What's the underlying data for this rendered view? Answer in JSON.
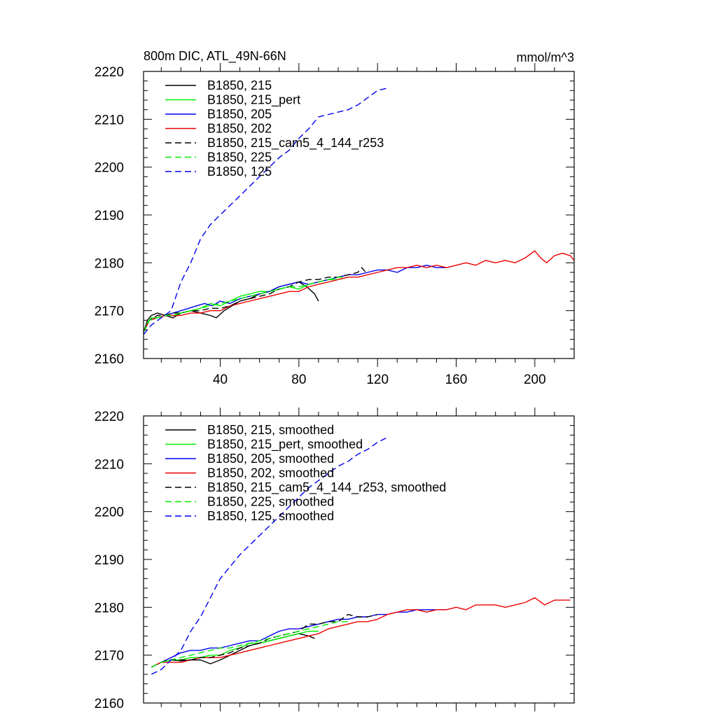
{
  "chart_data": [
    {
      "type": "line",
      "title": "800m DIC, ATL_49N-66N",
      "units": "mmol/m^3",
      "xlim": [
        1,
        220
      ],
      "ylim": [
        2160,
        2220
      ],
      "xticks": [
        40,
        80,
        120,
        160,
        200
      ],
      "yticks": [
        2160,
        2170,
        2180,
        2190,
        2200,
        2210,
        2220
      ],
      "xtick_labels": [
        "40",
        "80",
        "120",
        "160",
        "200"
      ],
      "ytick_labels": [
        "2160",
        "2170",
        "2180",
        "2190",
        "2200",
        "2210",
        "2220"
      ],
      "legend_position": "top-left",
      "series": [
        {
          "name": "B1850, 215",
          "color": "#000000",
          "dash": false,
          "x": [
            1,
            3,
            5,
            8,
            12,
            16,
            20,
            25,
            30,
            35,
            38,
            42,
            46,
            50,
            55,
            60,
            65,
            70,
            75,
            80,
            84,
            88,
            90
          ],
          "y": [
            2165.5,
            2168,
            2169,
            2169.5,
            2169,
            2168.5,
            2169.5,
            2170,
            2169.5,
            2169,
            2168.5,
            2170,
            2171,
            2172,
            2172.5,
            2173.5,
            2174,
            2175,
            2175.5,
            2176,
            2175,
            2173.5,
            2172
          ]
        },
        {
          "name": "B1850, 215_pert",
          "color": "#00ee00",
          "dash": false,
          "x": [
            1,
            3,
            5,
            8,
            12,
            16,
            20,
            25,
            30,
            35,
            40,
            45,
            50,
            55,
            60,
            65,
            70,
            75,
            80,
            85,
            90,
            95,
            100,
            105
          ],
          "y": [
            2165.5,
            2167.5,
            2168.5,
            2168.5,
            2169,
            2169,
            2169.5,
            2170,
            2170.5,
            2171.5,
            2171,
            2172,
            2173,
            2173.5,
            2174,
            2174,
            2174.5,
            2175,
            2174.5,
            2175.5,
            2176,
            2176.5,
            2176.5,
            2177
          ]
        },
        {
          "name": "B1850, 205",
          "color": "#0000ee",
          "dash": false,
          "x": [
            1,
            4,
            8,
            12,
            16,
            20,
            24,
            28,
            32,
            36,
            40,
            45,
            50,
            55,
            60,
            65,
            70,
            75,
            80,
            85,
            90,
            95,
            100,
            105,
            110,
            115,
            120,
            125,
            130,
            135,
            140,
            145,
            150,
            155
          ],
          "y": [
            2165.5,
            2168,
            2168.5,
            2169,
            2169.5,
            2170,
            2170.5,
            2171,
            2171.5,
            2171,
            2172,
            2171.5,
            2172.5,
            2173,
            2173.5,
            2174,
            2175,
            2175.5,
            2176,
            2175.5,
            2176,
            2176.5,
            2177,
            2177.5,
            2177.5,
            2178,
            2178.5,
            2178.5,
            2178,
            2179,
            2179,
            2179.5,
            2179,
            2179
          ]
        },
        {
          "name": "B1850, 202",
          "color": "#ee0000",
          "dash": false,
          "x": [
            1,
            4,
            8,
            12,
            16,
            20,
            25,
            30,
            35,
            40,
            45,
            50,
            55,
            60,
            65,
            70,
            75,
            80,
            85,
            90,
            95,
            100,
            105,
            110,
            115,
            120,
            125,
            130,
            135,
            140,
            145,
            150,
            155,
            160,
            165,
            170,
            175,
            180,
            185,
            190,
            195,
            200,
            203,
            206,
            210,
            214,
            218,
            220
          ],
          "y": [
            2165.5,
            2168,
            2168.5,
            2169,
            2169,
            2169,
            2169.5,
            2169.5,
            2170,
            2170,
            2171,
            2171.5,
            2172,
            2172.5,
            2173,
            2173.5,
            2174,
            2174,
            2175,
            2175.5,
            2176,
            2176.5,
            2177,
            2177,
            2177.5,
            2178,
            2178.5,
            2179,
            2179,
            2179.5,
            2179,
            2179.5,
            2179,
            2179.5,
            2180,
            2179.5,
            2180.5,
            2180,
            2180.5,
            2180,
            2181,
            2182.5,
            2181,
            2180,
            2181.5,
            2182,
            2181.5,
            2180.5
          ]
        },
        {
          "name": "B1850, 215_cam5_4_144_r253",
          "color": "#000000",
          "dash": true,
          "x": [
            1,
            4,
            8,
            12,
            16,
            20,
            25,
            30,
            35,
            40,
            45,
            50,
            55,
            60,
            65,
            70,
            75,
            80,
            85,
            90,
            95,
            100,
            105,
            110,
            112,
            114
          ],
          "y": [
            2165.5,
            2168,
            2169,
            2169,
            2169.5,
            2169.5,
            2170,
            2170,
            2170.5,
            2170.5,
            2171,
            2172,
            2172.5,
            2173,
            2173.5,
            2174.5,
            2175,
            2176,
            2176.5,
            2176.5,
            2177,
            2177,
            2177.5,
            2178,
            2179,
            2178
          ]
        },
        {
          "name": "B1850, 225",
          "color": "#00ee00",
          "dash": true,
          "x": [
            1,
            4,
            8,
            12,
            16,
            20,
            25,
            30,
            35,
            40,
            45,
            50,
            55,
            60,
            65,
            70,
            75,
            80,
            85,
            90,
            95,
            100,
            104
          ],
          "y": [
            2165.5,
            2168,
            2168.5,
            2169,
            2169,
            2169.5,
            2170,
            2170.5,
            2171,
            2171.5,
            2172,
            2172.5,
            2173,
            2173.5,
            2174,
            2174.5,
            2175,
            2175,
            2175.5,
            2176,
            2176.5,
            2177,
            2177
          ]
        },
        {
          "name": "B1850, 125",
          "color": "#0000ee",
          "dash": true,
          "x": [
            1,
            5,
            10,
            15,
            20,
            25,
            30,
            35,
            40,
            45,
            50,
            55,
            60,
            65,
            70,
            75,
            80,
            85,
            90,
            95,
            100,
            105,
            110,
            115,
            120,
            125
          ],
          "y": [
            2165,
            2167,
            2168.5,
            2170,
            2176,
            2180,
            2185,
            2188,
            2190,
            2192,
            2194,
            2196,
            2198,
            2200,
            2202,
            2203.5,
            2206,
            2208,
            2210.5,
            2211,
            2211.5,
            2212,
            2213,
            2214.5,
            2216,
            2216.5
          ]
        }
      ]
    },
    {
      "type": "line",
      "xlim": [
        1,
        220
      ],
      "ylim": [
        2160,
        2220
      ],
      "xticks": [
        40,
        80,
        120,
        160,
        200
      ],
      "yticks": [
        2160,
        2170,
        2180,
        2190,
        2200,
        2210,
        2220
      ],
      "ytick_labels": [
        "2160",
        "2170",
        "2180",
        "2190",
        "2200",
        "2210",
        "2220"
      ],
      "legend_position": "top-left",
      "series": [
        {
          "name": "B1850, 215, smoothed",
          "color": "#000000",
          "dash": false,
          "x": [
            5,
            10,
            15,
            20,
            25,
            30,
            35,
            40,
            45,
            50,
            55,
            60,
            65,
            70,
            75,
            80,
            85,
            88
          ],
          "y": [
            2167.5,
            2168.5,
            2169,
            2168.8,
            2169,
            2169,
            2168.2,
            2169,
            2170,
            2171,
            2172,
            2172.5,
            2173,
            2173.5,
            2174,
            2174.5,
            2174,
            2173.5
          ]
        },
        {
          "name": "B1850, 215_pert, smoothed",
          "color": "#00ee00",
          "dash": false,
          "x": [
            5,
            10,
            15,
            20,
            25,
            30,
            35,
            40,
            45,
            50,
            55,
            60,
            65,
            70,
            75,
            80,
            85,
            90
          ],
          "y": [
            2167.5,
            2168.5,
            2169,
            2169,
            2169.5,
            2169.5,
            2170,
            2170,
            2171,
            2171.5,
            2172.5,
            2172.5,
            2173,
            2173.5,
            2174,
            2174.5,
            2175,
            2175
          ]
        },
        {
          "name": "B1850, 205, smoothed",
          "color": "#0000ee",
          "dash": false,
          "x": [
            5,
            10,
            15,
            20,
            25,
            30,
            35,
            40,
            45,
            50,
            55,
            60,
            65,
            70,
            75,
            80,
            85,
            90,
            95,
            100,
            105,
            110,
            115,
            120,
            125,
            130,
            135,
            140,
            145,
            150,
            155
          ],
          "y": [
            2167.5,
            2168.5,
            2169.5,
            2170.5,
            2171,
            2171,
            2171.5,
            2171.5,
            2172,
            2172.5,
            2173,
            2173,
            2174,
            2175,
            2175.5,
            2175.5,
            2176,
            2176.5,
            2177,
            2177.5,
            2177.5,
            2178,
            2178,
            2178.5,
            2178.5,
            2179,
            2179,
            2179.5,
            2179.5,
            2179.5,
            2179.5
          ]
        },
        {
          "name": "B1850, 202, smoothed",
          "color": "#ee0000",
          "dash": false,
          "x": [
            5,
            10,
            15,
            20,
            25,
            30,
            35,
            40,
            45,
            50,
            55,
            60,
            65,
            70,
            75,
            80,
            85,
            90,
            95,
            100,
            105,
            110,
            115,
            120,
            125,
            130,
            135,
            140,
            145,
            150,
            155,
            160,
            165,
            170,
            175,
            180,
            185,
            190,
            195,
            200,
            205,
            210,
            215,
            218
          ],
          "y": [
            2167.5,
            2168.5,
            2168.5,
            2168.5,
            2169,
            2169.5,
            2169.5,
            2169.5,
            2170,
            2170.5,
            2171,
            2171.5,
            2172,
            2172.5,
            2173,
            2173.5,
            2174,
            2174.5,
            2175.5,
            2176,
            2176.5,
            2177,
            2177,
            2177.5,
            2178.5,
            2179,
            2179.5,
            2179.5,
            2179,
            2179.5,
            2179.5,
            2180,
            2179.5,
            2180.5,
            2180.5,
            2180.5,
            2180,
            2180.5,
            2181,
            2182,
            2180.5,
            2181.5,
            2181.5,
            2181.5
          ]
        },
        {
          "name": "B1850, 215_cam5_4_144_r253, smoothed",
          "color": "#000000",
          "dash": true,
          "x": [
            5,
            10,
            15,
            20,
            25,
            30,
            35,
            40,
            45,
            50,
            55,
            60,
            65,
            70,
            75,
            80,
            85,
            90,
            95,
            100,
            105,
            110,
            115,
            120
          ],
          "y": [
            2167.5,
            2168.5,
            2169,
            2169,
            2169,
            2169.5,
            2169.5,
            2170,
            2170.5,
            2171.5,
            2172,
            2172.5,
            2173.5,
            2174,
            2174.5,
            2175,
            2176.5,
            2176.5,
            2177,
            2177,
            2178.5,
            2178,
            2178,
            2178.5
          ]
        },
        {
          "name": "B1850, 225, smoothed",
          "color": "#00ee00",
          "dash": true,
          "x": [
            5,
            10,
            15,
            20,
            25,
            30,
            35,
            40,
            45,
            50,
            55,
            60,
            65,
            70,
            75,
            80,
            85,
            90,
            95,
            100,
            105
          ],
          "y": [
            2167.5,
            2168.5,
            2169,
            2169.5,
            2170,
            2170.5,
            2171,
            2171.5,
            2171.5,
            2172,
            2172.5,
            2173,
            2173.5,
            2174,
            2174.5,
            2175,
            2175.5,
            2176,
            2176.5,
            2177,
            2177
          ]
        },
        {
          "name": "B1850, 125, smoothed",
          "color": "#0000ee",
          "dash": true,
          "x": [
            5,
            10,
            15,
            20,
            25,
            30,
            35,
            40,
            45,
            50,
            55,
            60,
            65,
            70,
            75,
            80,
            85,
            90,
            95,
            100,
            105,
            110,
            115,
            120,
            125
          ],
          "y": [
            2166,
            2167,
            2169,
            2171,
            2175,
            2178,
            2182,
            2186,
            2188.5,
            2191,
            2193,
            2195,
            2197,
            2199,
            2201,
            2203,
            2205,
            2206.5,
            2208,
            2209.5,
            2210.5,
            2212,
            2213,
            2214.5,
            2215.5
          ]
        }
      ]
    }
  ]
}
